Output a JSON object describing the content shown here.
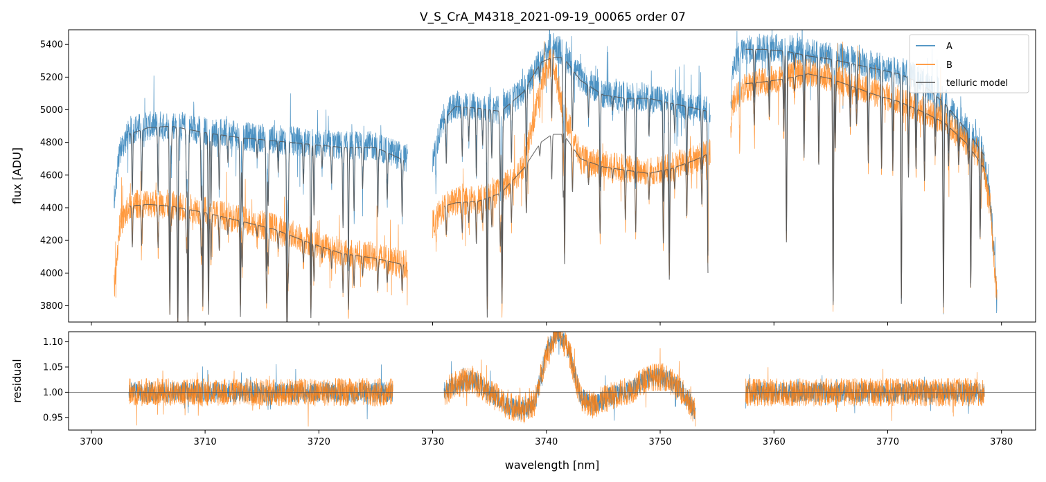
{
  "chart_data": {
    "type": "line",
    "title": "V_S_CrA_M4318_2021-09-19_00065  order 07",
    "xlabel": "wavelength [nm]",
    "xlim": [
      3698,
      3783
    ],
    "xticks": [
      3700,
      3710,
      3720,
      3730,
      3740,
      3750,
      3760,
      3770,
      3780
    ],
    "top_panel": {
      "ylabel": "flux [ADU]",
      "ylim": [
        3700,
        5490
      ],
      "yticks": [
        3800,
        4000,
        4200,
        4400,
        4600,
        4800,
        5000,
        5200,
        5400
      ],
      "legend": {
        "placement": "top-right",
        "entries": [
          {
            "label": "A",
            "color": "#1f77b4"
          },
          {
            "label": "B",
            "color": "#ff7f0e"
          },
          {
            "label": "telluric model",
            "color": "#555555"
          }
        ]
      },
      "series": [
        {
          "name": "A",
          "color": "#1f77b4",
          "segments": [
            {
              "x": [
                3702.0,
                3702.5,
                3703.5,
                3705,
                3707,
                3710,
                3713,
                3716,
                3719,
                3722,
                3725,
                3727.8
              ],
              "y": [
                4450,
                4750,
                4880,
                4900,
                4910,
                4870,
                4840,
                4820,
                4800,
                4780,
                4780,
                4700
              ]
            },
            {
              "x": [
                3730.0,
                3731,
                3732,
                3734,
                3736,
                3738,
                3739.5,
                3740.5,
                3741.5,
                3743,
                3745,
                3747,
                3749,
                3751,
                3753,
                3754.4
              ],
              "y": [
                4700,
                4950,
                5030,
                5020,
                5000,
                5120,
                5300,
                5400,
                5350,
                5200,
                5100,
                5080,
                5080,
                5050,
                5020,
                5000
              ]
            },
            {
              "x": [
                3756.2,
                3757,
                3759,
                3761,
                3763,
                3765,
                3767,
                3769,
                3771,
                3773,
                3775,
                3777,
                3778.3,
                3779,
                3779.6
              ],
              "y": [
                5200,
                5360,
                5380,
                5380,
                5350,
                5330,
                5300,
                5270,
                5240,
                5180,
                5050,
                4880,
                4750,
                4450,
                3900
              ]
            }
          ]
        },
        {
          "name": "B",
          "color": "#ff7f0e",
          "segments": [
            {
              "x": [
                3702.0,
                3702.5,
                3703.5,
                3705,
                3707,
                3710,
                3713,
                3716,
                3719,
                3722,
                3725,
                3727.8
              ],
              "y": [
                3900,
                4300,
                4420,
                4430,
                4420,
                4380,
                4330,
                4280,
                4200,
                4130,
                4100,
                4050
              ]
            },
            {
              "x": [
                3730.0,
                3731,
                3732,
                3734,
                3736,
                3738,
                3739.5,
                3740.5,
                3741.5,
                3743,
                3745,
                3747,
                3749,
                3751,
                3753,
                3754.4
              ],
              "y": [
                4300,
                4400,
                4440,
                4450,
                4500,
                4650,
                5150,
                5320,
                5000,
                4700,
                4660,
                4640,
                4620,
                4650,
                4700,
                4750
              ]
            },
            {
              "x": [
                3756.2,
                3757,
                3759,
                3761,
                3763,
                3765,
                3767,
                3769,
                3771,
                3773,
                3775,
                3777,
                3778.3,
                3779,
                3779.6
              ],
              "y": [
                5000,
                5120,
                5170,
                5200,
                5230,
                5200,
                5150,
                5100,
                5060,
                5000,
                4930,
                4800,
                4700,
                4400,
                3850
              ]
            }
          ]
        },
        {
          "name": "telluric model A",
          "color": "#555555",
          "segments": [
            {
              "x": [
                3703.3,
                3705,
                3707,
                3710,
                3713,
                3716,
                3719,
                3722,
                3725,
                3727.5
              ],
              "y": [
                4850,
                4890,
                4900,
                4860,
                4830,
                4810,
                4790,
                4770,
                4770,
                4690
              ]
            },
            {
              "x": [
                3731.0,
                3732,
                3734,
                3736,
                3738,
                3739.5,
                3740.5,
                3741.5,
                3743,
                3745,
                3747,
                3749,
                3751,
                3753,
                3754.2
              ],
              "y": [
                4940,
                5020,
                5010,
                4990,
                5110,
                5290,
                5320,
                5320,
                5180,
                5090,
                5070,
                5070,
                5040,
                5010,
                4990
              ]
            },
            {
              "x": [
                3757.5,
                3759,
                3761,
                3763,
                3765,
                3767,
                3769,
                3771,
                3773,
                3775,
                3777,
                3778.5
              ],
              "y": [
                5370,
                5370,
                5360,
                5330,
                5310,
                5280,
                5250,
                5220,
                5160,
                5040,
                4870,
                4720
              ]
            }
          ]
        },
        {
          "name": "telluric model B",
          "color": "#555555",
          "segments": [
            {
              "x": [
                3703.3,
                3705,
                3707,
                3710,
                3713,
                3716,
                3719,
                3722,
                3725,
                3727.5
              ],
              "y": [
                4410,
                4420,
                4410,
                4370,
                4320,
                4270,
                4190,
                4120,
                4090,
                4050
              ]
            },
            {
              "x": [
                3731.0,
                3732,
                3734,
                3736,
                3738,
                3739.5,
                3740.5,
                3741.5,
                3743,
                3745,
                3747,
                3749,
                3751,
                3753,
                3754.2
              ],
              "y": [
                4410,
                4430,
                4440,
                4490,
                4640,
                4800,
                4850,
                4850,
                4700,
                4650,
                4630,
                4610,
                4640,
                4690,
                4730
              ]
            },
            {
              "x": [
                3757.5,
                3759,
                3761,
                3763,
                3765,
                3767,
                3769,
                3771,
                3773,
                3775,
                3777,
                3778.5
              ],
              "y": [
                5160,
                5170,
                5190,
                5220,
                5190,
                5140,
                5090,
                5050,
                4990,
                4920,
                4790,
                4640
              ]
            }
          ]
        }
      ]
    },
    "bottom_panel": {
      "ylabel": "residual",
      "ylim": [
        0.925,
        1.12
      ],
      "yticks": [
        0.95,
        1.0,
        1.05,
        1.1
      ],
      "ytick_labels": [
        "0.95",
        "1.00",
        "1.05",
        "1.10"
      ],
      "reference_line": 1.0,
      "series": [
        {
          "name": "A",
          "color": "#1f77b4",
          "segments": [
            {
              "x": [
                3703.3,
                3708,
                3713,
                3718,
                3723,
                3726.5
              ],
              "y": [
                1.0,
                1.0,
                1.0,
                1.0,
                1.0,
                1.0
              ]
            },
            {
              "x": [
                3731.0,
                3732,
                3733.5,
                3735,
                3736.5,
                3738,
                3739,
                3740,
                3741,
                3742,
                3743,
                3744,
                3745,
                3746,
                3747.5,
                3749,
                3750.5,
                3752,
                3753.1
              ],
              "y": [
                1.0,
                1.015,
                1.025,
                1.0,
                0.975,
                0.965,
                0.98,
                1.08,
                1.12,
                1.08,
                0.99,
                0.975,
                0.985,
                0.995,
                1.005,
                1.03,
                1.03,
                1.0,
                0.96
              ]
            },
            {
              "x": [
                3757.5,
                3762,
                3767,
                3772,
                3776,
                3778.5
              ],
              "y": [
                1.0,
                1.0,
                1.0,
                1.0,
                1.0,
                1.0
              ]
            }
          ]
        },
        {
          "name": "B",
          "color": "#ff7f0e",
          "segments": [
            {
              "x": [
                3703.3,
                3708,
                3713,
                3718,
                3723,
                3726.5
              ],
              "y": [
                1.0,
                1.0,
                1.0,
                1.0,
                1.0,
                1.0
              ]
            },
            {
              "x": [
                3731.0,
                3732,
                3733.5,
                3735,
                3736.5,
                3738,
                3739,
                3740,
                3741,
                3742,
                3743,
                3744,
                3745,
                3746,
                3747.5,
                3749,
                3750.5,
                3752,
                3753.1
              ],
              "y": [
                1.0,
                1.015,
                1.025,
                1.0,
                0.975,
                0.965,
                0.98,
                1.08,
                1.12,
                1.08,
                0.99,
                0.975,
                0.985,
                0.995,
                1.005,
                1.03,
                1.03,
                1.0,
                0.96
              ]
            },
            {
              "x": [
                3757.5,
                3762,
                3767,
                3772,
                3776,
                3778.5
              ],
              "y": [
                1.0,
                1.0,
                1.0,
                1.0,
                1.0,
                1.0
              ]
            }
          ]
        }
      ]
    }
  }
}
